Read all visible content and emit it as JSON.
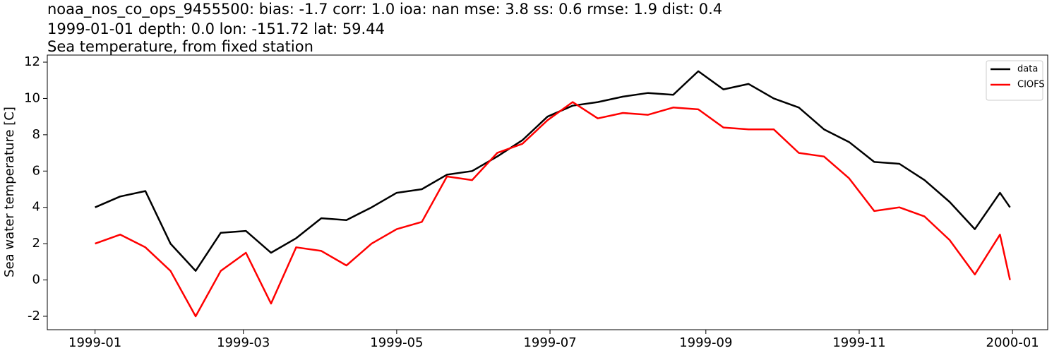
{
  "chart_data": {
    "type": "line",
    "title": "noaa_nos_co_ops_9455500: bias: -1.7  corr: 1.0  ioa: nan  mse: 3.8  ss: 0.6  rmse: 1.9  dist: 0.4",
    "subtitle": "1999-01-01 depth: 0.0 lon: -151.72 lat: 59.44",
    "subtitle2": "Sea temperature, from fixed station",
    "ylabel": "Sea water temperature [C]",
    "x": [
      "1999-01-01",
      "1999-01-11",
      "1999-01-21",
      "1999-01-31",
      "1999-02-10",
      "1999-02-20",
      "1999-03-02",
      "1999-03-12",
      "1999-03-22",
      "1999-04-01",
      "1999-04-11",
      "1999-04-21",
      "1999-05-01",
      "1999-05-11",
      "1999-05-21",
      "1999-05-31",
      "1999-06-10",
      "1999-06-20",
      "1999-06-30",
      "1999-07-10",
      "1999-07-20",
      "1999-07-30",
      "1999-08-09",
      "1999-08-19",
      "1999-08-29",
      "1999-09-08",
      "1999-09-18",
      "1999-09-28",
      "1999-10-08",
      "1999-10-18",
      "1999-10-28",
      "1999-11-07",
      "1999-11-17",
      "1999-11-27",
      "1999-12-07",
      "1999-12-17",
      "1999-12-27",
      "1999-12-31"
    ],
    "series": [
      {
        "name": "data",
        "color": "#000000",
        "values": [
          4.0,
          4.6,
          4.9,
          2.0,
          0.5,
          2.6,
          2.7,
          1.5,
          2.3,
          3.4,
          3.3,
          4.0,
          4.8,
          5.0,
          5.8,
          6.0,
          6.8,
          7.7,
          9.0,
          9.6,
          9.8,
          10.1,
          10.3,
          10.2,
          11.5,
          10.5,
          10.8,
          10.0,
          9.5,
          8.3,
          7.6,
          6.5,
          6.4,
          5.5,
          4.3,
          2.8,
          4.8,
          4.0
        ]
      },
      {
        "name": "CIOFS",
        "color": "#ff0000",
        "values": [
          2.0,
          2.5,
          1.8,
          0.5,
          -2.0,
          0.5,
          1.5,
          -1.3,
          1.8,
          1.6,
          0.8,
          2.0,
          2.8,
          3.2,
          5.7,
          5.5,
          7.0,
          7.5,
          8.8,
          9.8,
          8.9,
          9.2,
          9.1,
          9.5,
          9.4,
          8.4,
          8.3,
          8.3,
          7.0,
          6.8,
          5.6,
          3.8,
          4.0,
          3.5,
          2.2,
          0.3,
          2.5,
          0.0
        ]
      }
    ],
    "xlim": [
      "1998-12-13",
      "2000-01-15"
    ],
    "xticks": [
      {
        "value": "1999-01-01",
        "label": "1999-01"
      },
      {
        "value": "1999-03-01",
        "label": "1999-03"
      },
      {
        "value": "1999-05-01",
        "label": "1999-05"
      },
      {
        "value": "1999-07-01",
        "label": "1999-07"
      },
      {
        "value": "1999-09-01",
        "label": "1999-09"
      },
      {
        "value": "1999-11-01",
        "label": "1999-11"
      },
      {
        "value": "2000-01-01",
        "label": "2000-01"
      }
    ],
    "ylim": [
      -2.74,
      12.39
    ],
    "yticks": [
      -2,
      0,
      2,
      4,
      6,
      8,
      10,
      12
    ],
    "grid": false,
    "legend": "upper right"
  }
}
